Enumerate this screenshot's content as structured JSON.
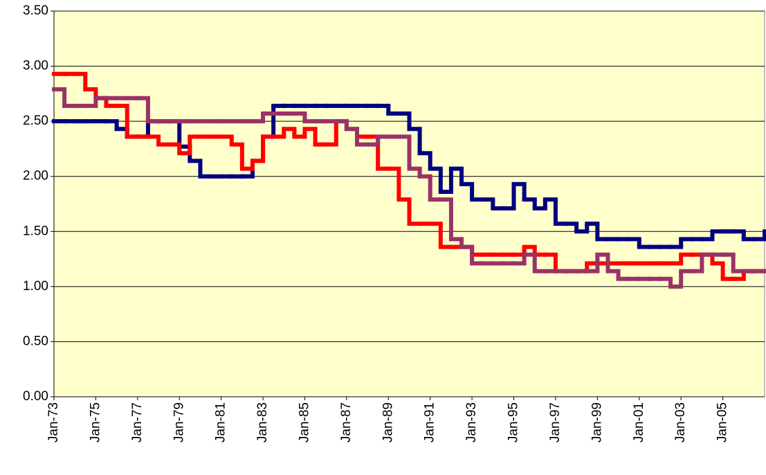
{
  "chart_data": {
    "type": "line",
    "step": true,
    "grid": true,
    "categories": [
      "Jan-73",
      null,
      null,
      null,
      "Jan-75",
      null,
      null,
      null,
      "Jan-77",
      null,
      null,
      null,
      "Jan-79",
      null,
      null,
      null,
      "Jan-81",
      null,
      null,
      null,
      "Jan-83",
      null,
      null,
      null,
      "Jan-85",
      null,
      null,
      null,
      "Jan-87",
      null,
      null,
      null,
      "Jan-89",
      null,
      null,
      null,
      "Jan-91",
      null,
      null,
      null,
      "Jan-93",
      null,
      null,
      null,
      "Jan-95",
      null,
      null,
      null,
      "Jan-97",
      null,
      null,
      null,
      "Jan-99",
      null,
      null,
      null,
      "Jan-01",
      null,
      null,
      null,
      "Jan-03",
      null,
      null,
      null,
      "Jan-05",
      null,
      null,
      null,
      null
    ],
    "ylim": [
      0,
      3.5
    ],
    "yticks": [
      {
        "value": 0,
        "label": "0.00"
      },
      {
        "value": 0.5,
        "label": "0.50"
      },
      {
        "value": 1,
        "label": "1.00"
      },
      {
        "value": 1.5,
        "label": "1.50"
      },
      {
        "value": 2,
        "label": "2.00"
      },
      {
        "value": 2.5,
        "label": "2.50"
      },
      {
        "value": 3,
        "label": "3.00"
      },
      {
        "value": 3.5,
        "label": "3.50"
      }
    ],
    "series": [
      {
        "color": "#000080",
        "values": [
          2.5,
          2.5,
          2.5,
          2.5,
          2.5,
          2.5,
          2.43,
          2.36,
          2.36,
          2.5,
          2.5,
          2.5,
          2.27,
          2.14,
          2.0,
          2.0,
          2.0,
          2.0,
          2.0,
          2.14,
          2.36,
          2.64,
          2.64,
          2.64,
          2.64,
          2.64,
          2.64,
          2.64,
          2.64,
          2.64,
          2.64,
          2.64,
          2.57,
          2.57,
          2.43,
          2.21,
          2.07,
          1.86,
          2.07,
          1.93,
          1.79,
          1.79,
          1.71,
          1.71,
          1.93,
          1.79,
          1.71,
          1.79,
          1.57,
          1.57,
          1.5,
          1.57,
          1.43,
          1.43,
          1.43,
          1.43,
          1.36,
          1.36,
          1.36,
          1.36,
          1.43,
          1.43,
          1.43,
          1.5,
          1.5,
          1.5,
          1.43,
          1.43,
          1.5
        ]
      },
      {
        "color": "#ff0000",
        "values": [
          2.93,
          2.93,
          2.93,
          2.79,
          2.71,
          2.64,
          2.64,
          2.36,
          2.36,
          2.36,
          2.29,
          2.29,
          2.21,
          2.36,
          2.36,
          2.36,
          2.36,
          2.29,
          2.07,
          2.14,
          2.36,
          2.36,
          2.43,
          2.36,
          2.43,
          2.29,
          2.29,
          2.5,
          2.43,
          2.36,
          2.36,
          2.07,
          2.07,
          1.79,
          1.57,
          1.57,
          1.57,
          1.36,
          1.36,
          1.36,
          1.29,
          1.29,
          1.29,
          1.29,
          1.29,
          1.36,
          1.29,
          1.29,
          1.14,
          1.14,
          1.14,
          1.21,
          1.21,
          1.21,
          1.21,
          1.21,
          1.21,
          1.21,
          1.21,
          1.21,
          1.29,
          1.29,
          1.29,
          1.21,
          1.07,
          1.07,
          1.14,
          1.14,
          1.14
        ]
      },
      {
        "color": "#993366",
        "values": [
          2.79,
          2.64,
          2.64,
          2.64,
          2.71,
          2.71,
          2.71,
          2.71,
          2.71,
          2.5,
          2.5,
          2.5,
          2.5,
          2.5,
          2.5,
          2.5,
          2.5,
          2.5,
          2.5,
          2.5,
          2.57,
          2.57,
          2.57,
          2.57,
          2.5,
          2.5,
          2.5,
          2.5,
          2.43,
          2.29,
          2.29,
          2.36,
          2.36,
          2.36,
          2.07,
          2.0,
          1.79,
          1.79,
          1.43,
          1.36,
          1.21,
          1.21,
          1.21,
          1.21,
          1.21,
          1.29,
          1.14,
          1.14,
          1.14,
          1.14,
          1.14,
          1.14,
          1.29,
          1.14,
          1.07,
          1.07,
          1.07,
          1.07,
          1.07,
          1.0,
          1.14,
          1.14,
          1.29,
          1.29,
          1.29,
          1.14,
          1.14,
          1.14,
          1.14
        ]
      }
    ]
  }
}
